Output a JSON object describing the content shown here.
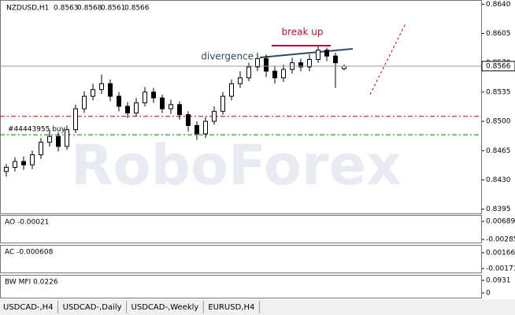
{
  "header": {
    "symbol": "NZDUSD,H1"
  },
  "chart_data": {
    "type": "candlestick",
    "series": {
      "open": [
        0.844,
        0.8445,
        0.8452,
        0.8448,
        0.846,
        0.8475,
        0.8482,
        0.847,
        0.849,
        0.8515,
        0.853,
        0.8538,
        0.8545,
        0.853,
        0.8518,
        0.851,
        0.8522,
        0.8535,
        0.8528,
        0.8515,
        0.852,
        0.8508,
        0.8495,
        0.8485,
        0.85,
        0.8512,
        0.853,
        0.8545,
        0.8552,
        0.8565,
        0.8575,
        0.856,
        0.8552,
        0.8562,
        0.857,
        0.8565,
        0.8574,
        0.8585,
        0.8578,
        0.8563
      ],
      "high": [
        0.8449,
        0.8457,
        0.8458,
        0.8465,
        0.848,
        0.849,
        0.8487,
        0.8495,
        0.852,
        0.8536,
        0.8545,
        0.8556,
        0.855,
        0.8535,
        0.8523,
        0.8528,
        0.8541,
        0.854,
        0.8532,
        0.8526,
        0.8524,
        0.8512,
        0.85,
        0.8505,
        0.8518,
        0.8535,
        0.855,
        0.856,
        0.857,
        0.8582,
        0.858,
        0.8566,
        0.8568,
        0.8576,
        0.8575,
        0.858,
        0.859,
        0.8588,
        0.8582,
        0.8568
      ],
      "low": [
        0.8434,
        0.844,
        0.8442,
        0.8443,
        0.8455,
        0.847,
        0.8464,
        0.8466,
        0.8486,
        0.851,
        0.8525,
        0.8533,
        0.8524,
        0.8512,
        0.8504,
        0.8506,
        0.8518,
        0.8522,
        0.851,
        0.8509,
        0.8502,
        0.8488,
        0.8478,
        0.848,
        0.8496,
        0.8508,
        0.8525,
        0.854,
        0.8548,
        0.856,
        0.8553,
        0.8545,
        0.8547,
        0.8557,
        0.856,
        0.856,
        0.857,
        0.8572,
        0.854,
        0.8561
      ],
      "close": [
        0.8445,
        0.8452,
        0.8448,
        0.846,
        0.8475,
        0.8482,
        0.847,
        0.849,
        0.8515,
        0.853,
        0.8538,
        0.8545,
        0.853,
        0.8518,
        0.851,
        0.8522,
        0.8535,
        0.8528,
        0.8515,
        0.852,
        0.8508,
        0.8495,
        0.8485,
        0.85,
        0.8512,
        0.853,
        0.8545,
        0.8552,
        0.8565,
        0.8575,
        0.856,
        0.8552,
        0.8562,
        0.857,
        0.8565,
        0.8574,
        0.8585,
        0.8578,
        0.857,
        0.8566
      ]
    },
    "ylim": [
      0.8389,
      0.8645
    ],
    "yticks": [
      {
        "value": 0.864,
        "label": "0.8640"
      },
      0.8605,
      {
        "value": 0.857,
        "label": "0.8570"
      },
      0.8535,
      {
        "value": 0.85,
        "label": "0.8500"
      },
      0.8465,
      {
        "value": 0.843,
        "label": "0.8430"
      },
      0.8395
    ],
    "levels": [
      {
        "value": 0.8506,
        "color": "#c00000"
      },
      {
        "value": 0.8484,
        "color": "#008000"
      }
    ],
    "annotations": {
      "divergence": "divergence",
      "break_up": "break up",
      "order": "#44443955 buy",
      "watermark": "RoboForex"
    }
  },
  "indicators": [
    {
      "label": "AO -0.00021",
      "ylim": [
        -0.0045,
        0.0103
      ],
      "ticks": [
        0.00689,
        -0.00285
      ]
    },
    {
      "label": "AC -0.000608",
      "ylim": [
        -0.00255,
        0.00335
      ],
      "ticks": [
        0.00166,
        -0.00171
      ]
    },
    {
      "label": "BW MFI 0.0226",
      "ylim": [
        -0.035,
        0.134
      ],
      "ticks": [
        0.0931,
        0
      ]
    }
  ],
  "tabs": [
    "USDCAD-,H4",
    "USDCAD-,Daily",
    "USDCAD-,Weekly",
    "EURUSD,H4"
  ]
}
